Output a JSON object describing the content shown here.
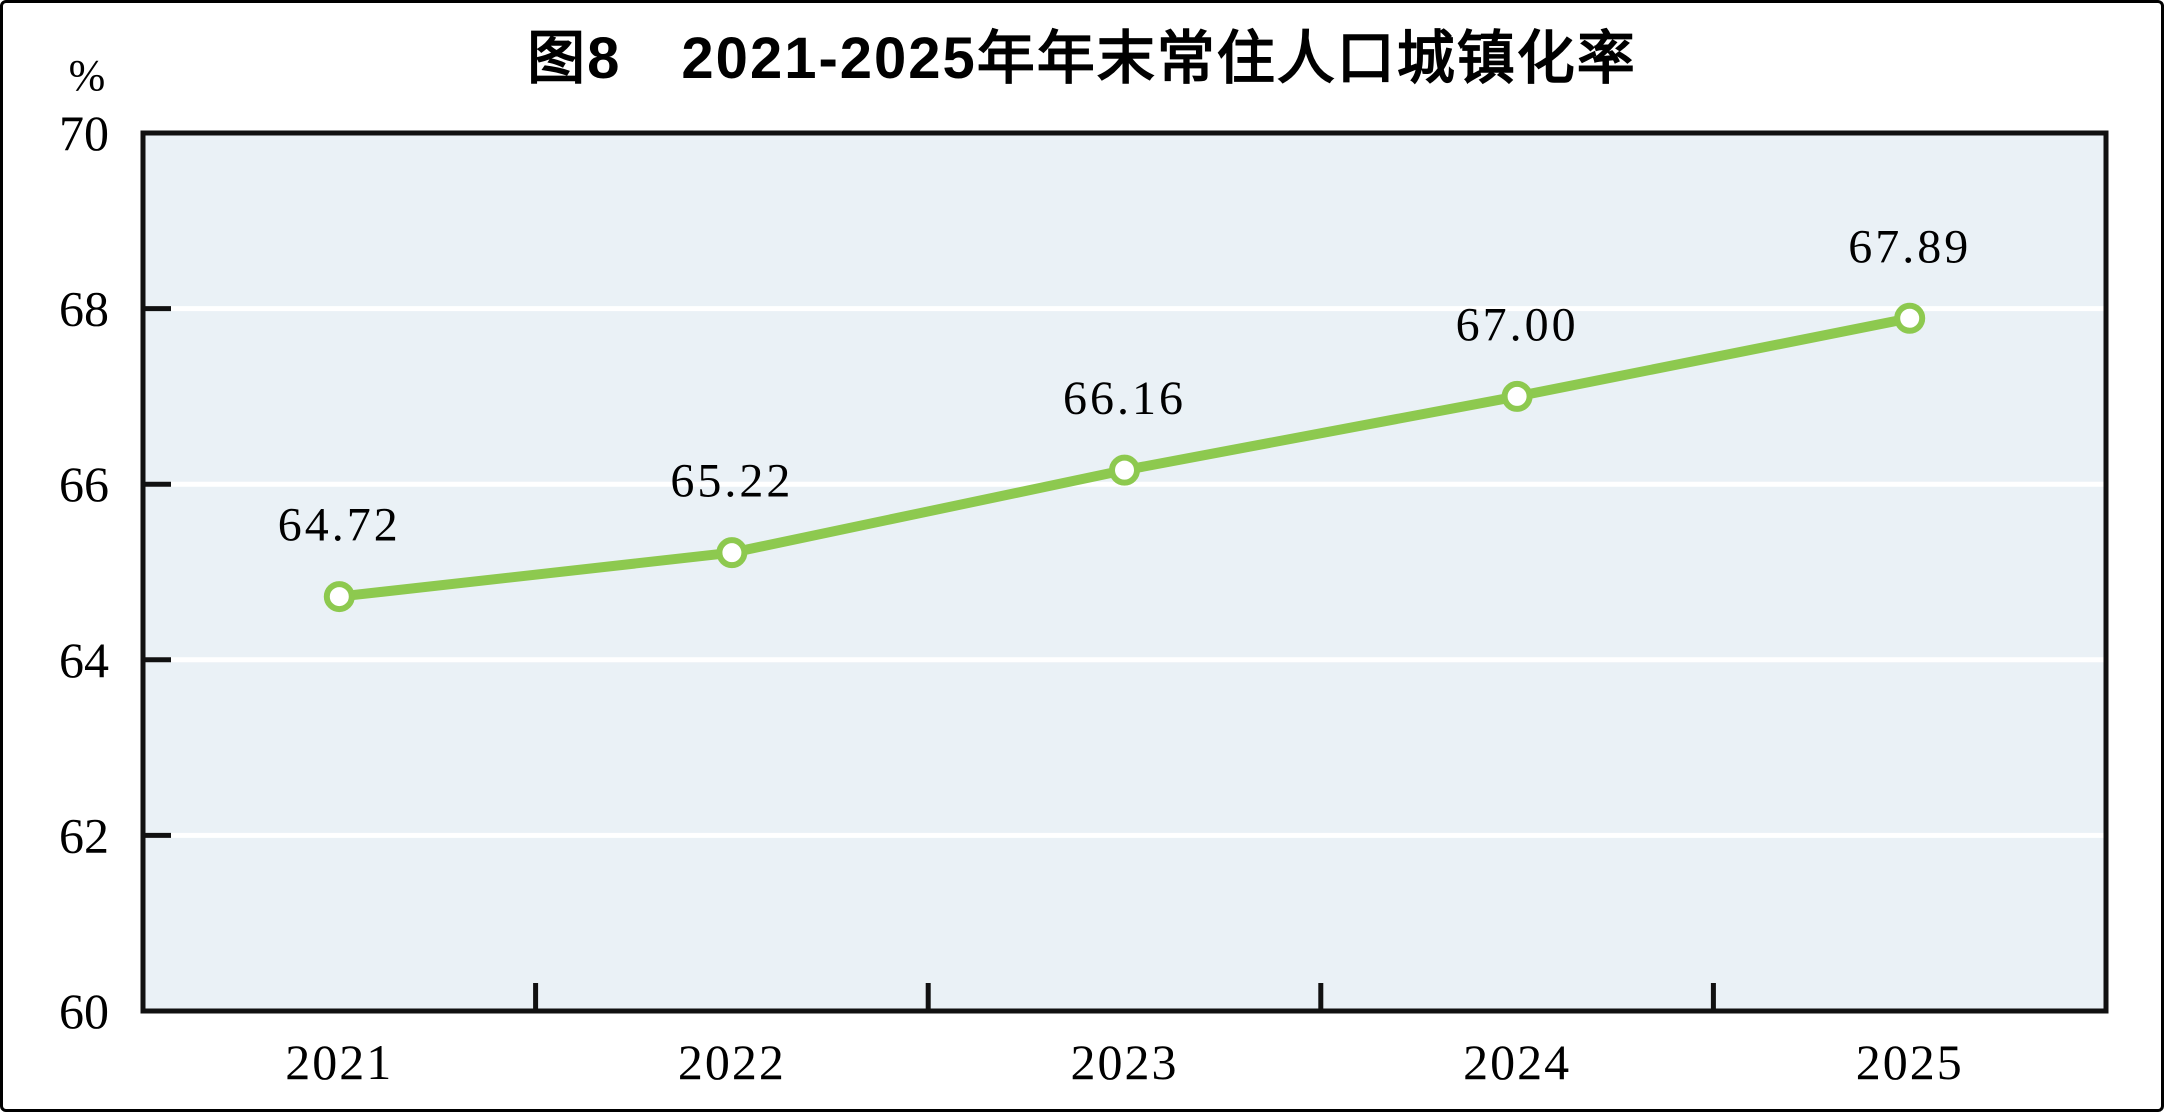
{
  "window": {
    "background": "#ffffff",
    "frame_border_color": "#000000"
  },
  "chart_data": {
    "type": "line",
    "title": "图8　2021-2025年年末常住人口城镇化率",
    "y_unit_label": "%",
    "xlabel": "",
    "ylabel": "%",
    "categories": [
      "2021",
      "2022",
      "2023",
      "2024",
      "2025"
    ],
    "values": [
      64.72,
      65.22,
      66.16,
      67.0,
      67.89
    ],
    "value_labels": [
      "64.72",
      "65.22",
      "66.16",
      "67.00",
      "67.89"
    ],
    "y_ticks": [
      60,
      62,
      64,
      66,
      68,
      70
    ],
    "ylim": [
      60,
      70
    ],
    "legend": "none",
    "grid": "horizontal-white-gridlines",
    "styles": {
      "line_color": "#8dc94f",
      "marker_fill": "#ffffff",
      "marker_stroke": "#8dc94f",
      "plot_background": "#eaf1f6",
      "gridline_color": "#ffffff",
      "axis_color": "#111111",
      "text_color": "#000000"
    }
  }
}
